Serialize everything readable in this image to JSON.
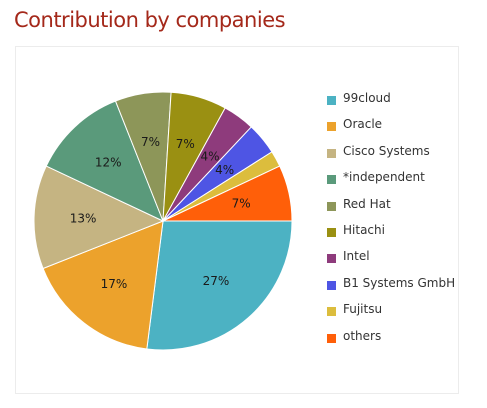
{
  "page": {
    "title": "Contribution by companies",
    "title_color": "#a4281a"
  },
  "chart_data": {
    "type": "pie",
    "title": "",
    "legend_position": "right",
    "categories": [
      "99cloud",
      "Oracle",
      "Cisco Systems",
      "*independent",
      "Red Hat",
      "Hitachi",
      "Intel",
      "B1 Systems GmbH",
      "Fujitsu",
      "others"
    ],
    "values": [
      27,
      17,
      13,
      12,
      7,
      7,
      4,
      4,
      2,
      7
    ],
    "data_labels": [
      "27%",
      "17%",
      "13%",
      "12%",
      "7%",
      "7%",
      "4%",
      "4%",
      "",
      "7%"
    ],
    "colors": [
      "#4cb2c3",
      "#eca22c",
      "#c5b482",
      "#5a9a7b",
      "#8d9659",
      "#9a9012",
      "#8e3b7c",
      "#4e55e4",
      "#dcbd3d",
      "#ff5f09"
    ]
  }
}
